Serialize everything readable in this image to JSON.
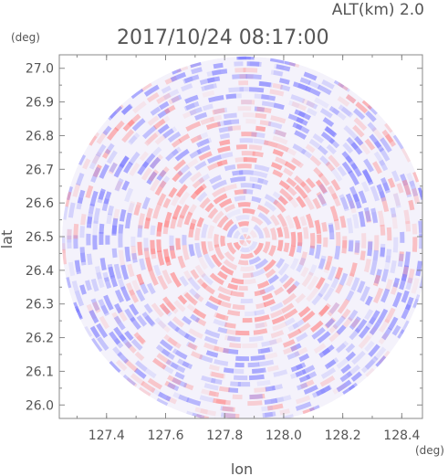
{
  "chart_data": {
    "type": "heatmap",
    "projection": "polar sweep (radar PPI)",
    "title": "2017/10/24 08:17:00",
    "altitude_label": "ALT(km) 2.0",
    "xlabel": "lon",
    "ylabel": "lat",
    "x_unit": "(deg)",
    "y_unit": "(deg)",
    "xlim": [
      127.24,
      128.47
    ],
    "ylim": [
      25.96,
      27.04
    ],
    "x_ticks": [
      "127.4",
      "127.6",
      "127.8",
      "128.0",
      "128.2",
      "128.4"
    ],
    "y_ticks": [
      "26.0",
      "26.1",
      "26.2",
      "26.3",
      "26.4",
      "26.5",
      "26.6",
      "26.7",
      "26.8",
      "26.9",
      "27.0"
    ],
    "center": {
      "lon": 127.87,
      "lat": 26.49
    },
    "radius_deg_lat": 0.545,
    "colorscale": {
      "negative": "#8080ff",
      "neutral": "#ffffff",
      "positive": "#ff8080"
    },
    "grid": false,
    "legend": "none"
  }
}
